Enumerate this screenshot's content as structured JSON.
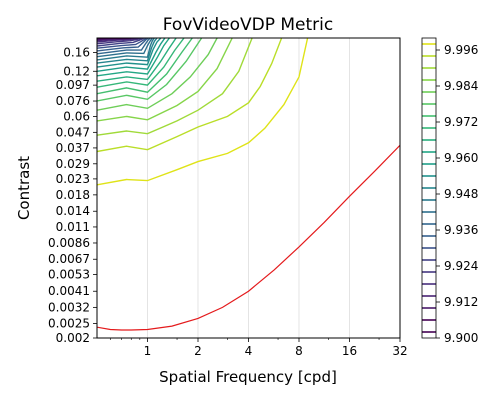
{
  "chart_data": {
    "type": "contour",
    "title": "FovVideoVDP Metric",
    "xlabel": "Spatial Frequency [cpd]",
    "ylabel": "Contrast",
    "x_scale": "log2",
    "y_scale": "log",
    "xlim": [
      0.5,
      32
    ],
    "ylim": [
      0.002,
      0.2
    ],
    "x_ticks": [
      1,
      2,
      4,
      8,
      16,
      32
    ],
    "x_tick_labels": [
      "1",
      "2",
      "4",
      "8",
      "16",
      "32"
    ],
    "y_ticks": [
      0.002,
      0.0025,
      0.0032,
      0.0041,
      0.0053,
      0.0067,
      0.0086,
      0.011,
      0.014,
      0.018,
      0.023,
      0.029,
      0.037,
      0.047,
      0.06,
      0.076,
      0.097,
      0.12,
      0.16
    ],
    "y_tick_labels": [
      "0.002",
      "0.0025",
      "0.0032",
      "0.0041",
      "0.0053",
      "0.0067",
      "0.0086",
      "0.011",
      "0.014",
      "0.018",
      "0.023",
      "0.029",
      "0.037",
      "0.047",
      "0.06",
      "0.076",
      "0.097",
      "0.12",
      "0.16"
    ],
    "grid_x": true,
    "grid_y": false,
    "colorbar": {
      "colormap": "viridis",
      "min": 9.9,
      "max": 10.0,
      "levels": 25,
      "ticks": [
        9.9,
        9.912,
        9.924,
        9.936,
        9.948,
        9.96,
        9.972,
        9.984,
        9.996
      ],
      "tick_labels": [
        "9.900",
        "9.912",
        "9.924",
        "9.936",
        "9.948",
        "9.960",
        "9.972",
        "9.984",
        "9.996"
      ]
    },
    "contour_levels": [
      {
        "level": 9.996,
        "color": "#dfe318",
        "x": [
          0.5,
          0.75,
          1.0,
          1.5,
          2.0,
          3.0,
          4.0,
          5.0,
          6.5,
          8.0,
          9.0
        ],
        "y": [
          0.021,
          0.0228,
          0.0224,
          0.0265,
          0.03,
          0.034,
          0.04,
          0.05,
          0.072,
          0.11,
          0.2
        ]
      },
      {
        "level": 9.992,
        "color": "#bade28",
        "x": [
          0.5,
          0.75,
          1.0,
          1.5,
          2.0,
          3.0,
          4.0,
          4.7,
          5.5,
          6.3
        ],
        "y": [
          0.035,
          0.038,
          0.036,
          0.044,
          0.051,
          0.06,
          0.074,
          0.095,
          0.135,
          0.2
        ]
      },
      {
        "level": 9.988,
        "color": "#a0da39",
        "x": [
          0.5,
          0.75,
          1.0,
          1.5,
          2.0,
          2.8,
          3.5,
          4.2
        ],
        "y": [
          0.045,
          0.048,
          0.046,
          0.056,
          0.066,
          0.085,
          0.12,
          0.2
        ]
      },
      {
        "level": 9.984,
        "color": "#86d549",
        "x": [
          0.5,
          0.75,
          1.0,
          1.5,
          2.0,
          2.6,
          3.2
        ],
        "y": [
          0.056,
          0.06,
          0.057,
          0.071,
          0.088,
          0.125,
          0.2
        ]
      },
      {
        "level": 9.98,
        "color": "#6ece58",
        "x": [
          0.5,
          0.75,
          1.0,
          1.4,
          1.8,
          2.3,
          2.6
        ],
        "y": [
          0.066,
          0.072,
          0.068,
          0.085,
          0.11,
          0.155,
          0.2
        ]
      },
      {
        "level": 9.976,
        "color": "#58c765",
        "x": [
          0.5,
          0.75,
          1.0,
          1.3,
          1.7,
          2.1
        ],
        "y": [
          0.076,
          0.083,
          0.078,
          0.098,
          0.14,
          0.2
        ]
      },
      {
        "level": 9.972,
        "color": "#44bf70",
        "x": [
          0.5,
          0.75,
          1.0,
          1.3,
          1.6,
          1.85
        ],
        "y": [
          0.085,
          0.093,
          0.087,
          0.115,
          0.16,
          0.2
        ]
      },
      {
        "level": 9.968,
        "color": "#35b779",
        "x": [
          0.5,
          0.75,
          1.0,
          1.25,
          1.45,
          1.65
        ],
        "y": [
          0.094,
          0.102,
          0.097,
          0.128,
          0.165,
          0.2
        ]
      },
      {
        "level": 9.964,
        "color": "#2aaf7f",
        "x": [
          0.5,
          0.75,
          1.0,
          1.2,
          1.35,
          1.48
        ],
        "y": [
          0.103,
          0.11,
          0.106,
          0.14,
          0.172,
          0.2
        ]
      },
      {
        "level": 9.96,
        "color": "#22a785",
        "x": [
          0.5,
          0.75,
          1.0,
          1.15,
          1.25,
          1.35
        ],
        "y": [
          0.112,
          0.119,
          0.115,
          0.15,
          0.178,
          0.2
        ]
      },
      {
        "level": 9.956,
        "color": "#1f9e89",
        "x": [
          0.5,
          0.75,
          1.0,
          1.12,
          1.2,
          1.27
        ],
        "y": [
          0.12,
          0.128,
          0.124,
          0.16,
          0.183,
          0.2
        ]
      },
      {
        "level": 9.952,
        "color": "#21918c",
        "x": [
          0.5,
          0.75,
          1.0,
          1.08,
          1.14,
          1.2
        ],
        "y": [
          0.128,
          0.136,
          0.133,
          0.168,
          0.188,
          0.2
        ]
      },
      {
        "level": 9.948,
        "color": "#25858e",
        "x": [
          0.5,
          0.75,
          1.0,
          1.06,
          1.1,
          1.14
        ],
        "y": [
          0.136,
          0.144,
          0.141,
          0.173,
          0.19,
          0.2
        ]
      },
      {
        "level": 9.944,
        "color": "#297a8e",
        "x": [
          0.5,
          0.75,
          1.0,
          1.04,
          1.07,
          1.1
        ],
        "y": [
          0.143,
          0.152,
          0.149,
          0.178,
          0.192,
          0.2
        ]
      },
      {
        "level": 9.94,
        "color": "#2d708e",
        "x": [
          0.5,
          0.75,
          0.95,
          1.0,
          1.04,
          1.07
        ],
        "y": [
          0.15,
          0.159,
          0.158,
          0.178,
          0.192,
          0.2
        ]
      },
      {
        "level": 9.936,
        "color": "#31668e",
        "x": [
          0.5,
          0.75,
          0.92,
          0.97,
          1.01,
          1.04
        ],
        "y": [
          0.157,
          0.166,
          0.166,
          0.182,
          0.194,
          0.2
        ]
      },
      {
        "level": 9.932,
        "color": "#355f8d",
        "x": [
          0.5,
          0.72,
          0.88,
          0.94,
          0.98,
          1.01
        ],
        "y": [
          0.164,
          0.172,
          0.174,
          0.186,
          0.195,
          0.2
        ]
      },
      {
        "level": 9.928,
        "color": "#3b528b",
        "x": [
          0.5,
          0.7,
          0.85,
          0.92,
          0.96,
          0.98
        ],
        "y": [
          0.171,
          0.178,
          0.181,
          0.19,
          0.196,
          0.2
        ]
      },
      {
        "level": 9.924,
        "color": "#424186",
        "x": [
          0.5,
          0.68,
          0.82,
          0.89,
          0.93,
          0.95
        ],
        "y": [
          0.177,
          0.184,
          0.187,
          0.193,
          0.197,
          0.2
        ]
      },
      {
        "level": 9.92,
        "color": "#453781",
        "x": [
          0.5,
          0.66,
          0.79,
          0.86,
          0.9,
          0.92
        ],
        "y": [
          0.183,
          0.189,
          0.192,
          0.195,
          0.198,
          0.2
        ]
      },
      {
        "level": 9.916,
        "color": "#472d7b",
        "x": [
          0.5,
          0.64,
          0.76,
          0.83,
          0.87,
          0.89
        ],
        "y": [
          0.188,
          0.193,
          0.195,
          0.197,
          0.199,
          0.2
        ]
      },
      {
        "level": 9.912,
        "color": "#482173",
        "x": [
          0.5,
          0.62,
          0.73,
          0.8,
          0.84,
          0.86
        ],
        "y": [
          0.192,
          0.196,
          0.197,
          0.198,
          0.199,
          0.2
        ]
      },
      {
        "level": 9.908,
        "color": "#481769",
        "x": [
          0.5,
          0.6,
          0.7,
          0.77,
          0.81,
          0.83
        ],
        "y": [
          0.195,
          0.198,
          0.198,
          0.199,
          0.1995,
          0.2
        ]
      },
      {
        "level": 9.904,
        "color": "#440154",
        "x": [
          0.5,
          0.58,
          0.67,
          0.74,
          0.78,
          0.8
        ],
        "y": [
          0.198,
          0.199,
          0.1992,
          0.1995,
          0.1998,
          0.2
        ]
      }
    ],
    "threshold_line": {
      "color": "#e41a1c",
      "x": [
        0.5,
        0.6,
        0.7,
        0.8,
        1.0,
        1.4,
        2.0,
        2.8,
        4.0,
        5.7,
        8.0,
        11.3,
        16.0,
        22.6,
        32.0
      ],
      "y": [
        0.00236,
        0.00228,
        0.00226,
        0.00226,
        0.00228,
        0.0024,
        0.0027,
        0.0032,
        0.0041,
        0.0057,
        0.0081,
        0.0118,
        0.0176,
        0.0259,
        0.0385
      ]
    }
  }
}
